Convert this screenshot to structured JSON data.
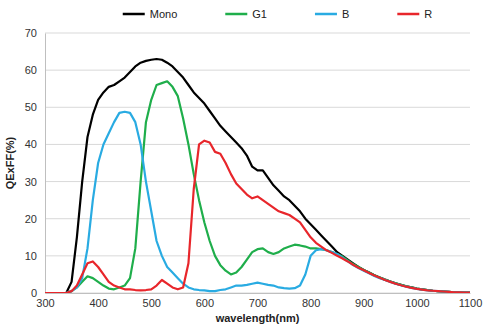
{
  "chart_data": {
    "type": "line",
    "x_label": "wavelength(nm)",
    "y_label": "QExFF(%)",
    "x": [
      300,
      310,
      320,
      330,
      340,
      350,
      360,
      370,
      380,
      390,
      400,
      410,
      420,
      430,
      440,
      450,
      460,
      470,
      480,
      490,
      500,
      510,
      520,
      530,
      540,
      550,
      560,
      570,
      580,
      590,
      600,
      610,
      620,
      630,
      640,
      650,
      660,
      670,
      680,
      690,
      700,
      710,
      720,
      730,
      740,
      750,
      760,
      770,
      780,
      790,
      800,
      810,
      820,
      830,
      840,
      850,
      860,
      870,
      880,
      890,
      900,
      910,
      920,
      930,
      940,
      950,
      960,
      970,
      980,
      990,
      1000,
      1010,
      1020,
      1030,
      1040,
      1050,
      1060,
      1070,
      1080,
      1090,
      1100
    ],
    "series": [
      {
        "name": "Mono",
        "color": "#000000",
        "values": [
          0,
          0,
          0,
          0,
          0,
          3,
          15,
          30,
          42,
          48,
          52,
          54,
          55.5,
          56,
          57,
          58,
          59.5,
          61,
          62,
          62.5,
          62.8,
          63,
          62.8,
          62,
          61,
          59.5,
          58,
          56,
          54,
          52.5,
          51,
          49,
          47,
          45,
          43.5,
          42,
          40.5,
          39,
          37,
          34,
          33,
          33,
          31,
          29,
          27.5,
          26,
          25,
          23.5,
          22,
          20,
          18.5,
          17,
          15.5,
          14,
          12.5,
          11,
          10,
          9,
          8,
          7,
          6.2,
          5.5,
          4.8,
          4.2,
          3.6,
          3.1,
          2.6,
          2.2,
          1.8,
          1.5,
          1.2,
          1,
          0.8,
          0.6,
          0.5,
          0.4,
          0.3,
          0.2,
          0.15,
          0.1,
          0.1
        ]
      },
      {
        "name": "G1",
        "color": "#1fae4b",
        "values": [
          0,
          0,
          0,
          0,
          0,
          0.5,
          1.5,
          3,
          4.5,
          4,
          3,
          2,
          1.2,
          1,
          1.5,
          2,
          4,
          12,
          30,
          46,
          52,
          56,
          56.5,
          57,
          55.5,
          53,
          47,
          40,
          32,
          25,
          19,
          14,
          10,
          7.5,
          6,
          5,
          5.5,
          7,
          9,
          11,
          11.8,
          12,
          11,
          10.5,
          11,
          12,
          12.5,
          13,
          12.8,
          12.5,
          12,
          12,
          11.8,
          11.5,
          11,
          10.5,
          9.8,
          8.8,
          7.8,
          7,
          6.2,
          5.5,
          4.8,
          4.2,
          3.6,
          3.1,
          2.6,
          2.2,
          1.8,
          1.5,
          1.2,
          1,
          0.8,
          0.6,
          0.5,
          0.4,
          0.3,
          0.2,
          0.15,
          0.1,
          0.1
        ]
      },
      {
        "name": "B",
        "color": "#29abe2",
        "values": [
          0,
          0,
          0,
          0,
          0,
          0.5,
          1.5,
          4,
          12,
          25,
          35,
          40,
          43,
          46,
          48.5,
          48.8,
          48.5,
          46,
          40,
          30,
          22,
          14,
          10,
          7,
          5.5,
          4,
          2.5,
          1.5,
          1,
          0.8,
          0.7,
          0.5,
          0.5,
          0.8,
          1,
          1.5,
          2,
          2,
          2.2,
          2.5,
          2.8,
          2.5,
          2.2,
          2,
          1.5,
          1.3,
          1.2,
          1.3,
          2,
          5,
          10,
          11.5,
          11.8,
          11.5,
          11,
          10.5,
          9.5,
          8.5,
          7.5,
          6.7,
          6,
          5.3,
          4.6,
          4,
          3.5,
          3,
          2.5,
          2.1,
          1.7,
          1.4,
          1.1,
          0.9,
          0.7,
          0.6,
          0.5,
          0.4,
          0.3,
          0.2,
          0.15,
          0.1,
          0.1
        ]
      },
      {
        "name": "R",
        "color": "#e8262b",
        "values": [
          0,
          0,
          0,
          0,
          0,
          0.5,
          2,
          5,
          8,
          8.5,
          7,
          5,
          3,
          2,
          1.5,
          1,
          1,
          0.8,
          0.7,
          0.8,
          1,
          2,
          3.5,
          2.5,
          1.5,
          1,
          1.5,
          8,
          28,
          40,
          41,
          40.5,
          38,
          37.5,
          35,
          32,
          29.5,
          28,
          26.5,
          25.5,
          26,
          25,
          24,
          23,
          22,
          21.5,
          21,
          20,
          19,
          17,
          15,
          13.5,
          12.5,
          11.5,
          10.8,
          10,
          9.3,
          8.5,
          7.6,
          6.8,
          6.1,
          5.4,
          4.7,
          4.1,
          3.5,
          3,
          2.5,
          2.1,
          1.7,
          1.4,
          1.1,
          0.9,
          0.7,
          0.6,
          0.5,
          0.4,
          0.3,
          0.2,
          0.15,
          0.1,
          0.1
        ]
      }
    ],
    "xlim": [
      300,
      1100
    ],
    "xticks": [
      300,
      400,
      500,
      600,
      700,
      800,
      900,
      1000,
      1100
    ],
    "ylim": [
      0,
      70
    ],
    "yticks": [
      0,
      10,
      20,
      30,
      40,
      50,
      60,
      70
    ],
    "grid": true,
    "legend": "top"
  }
}
